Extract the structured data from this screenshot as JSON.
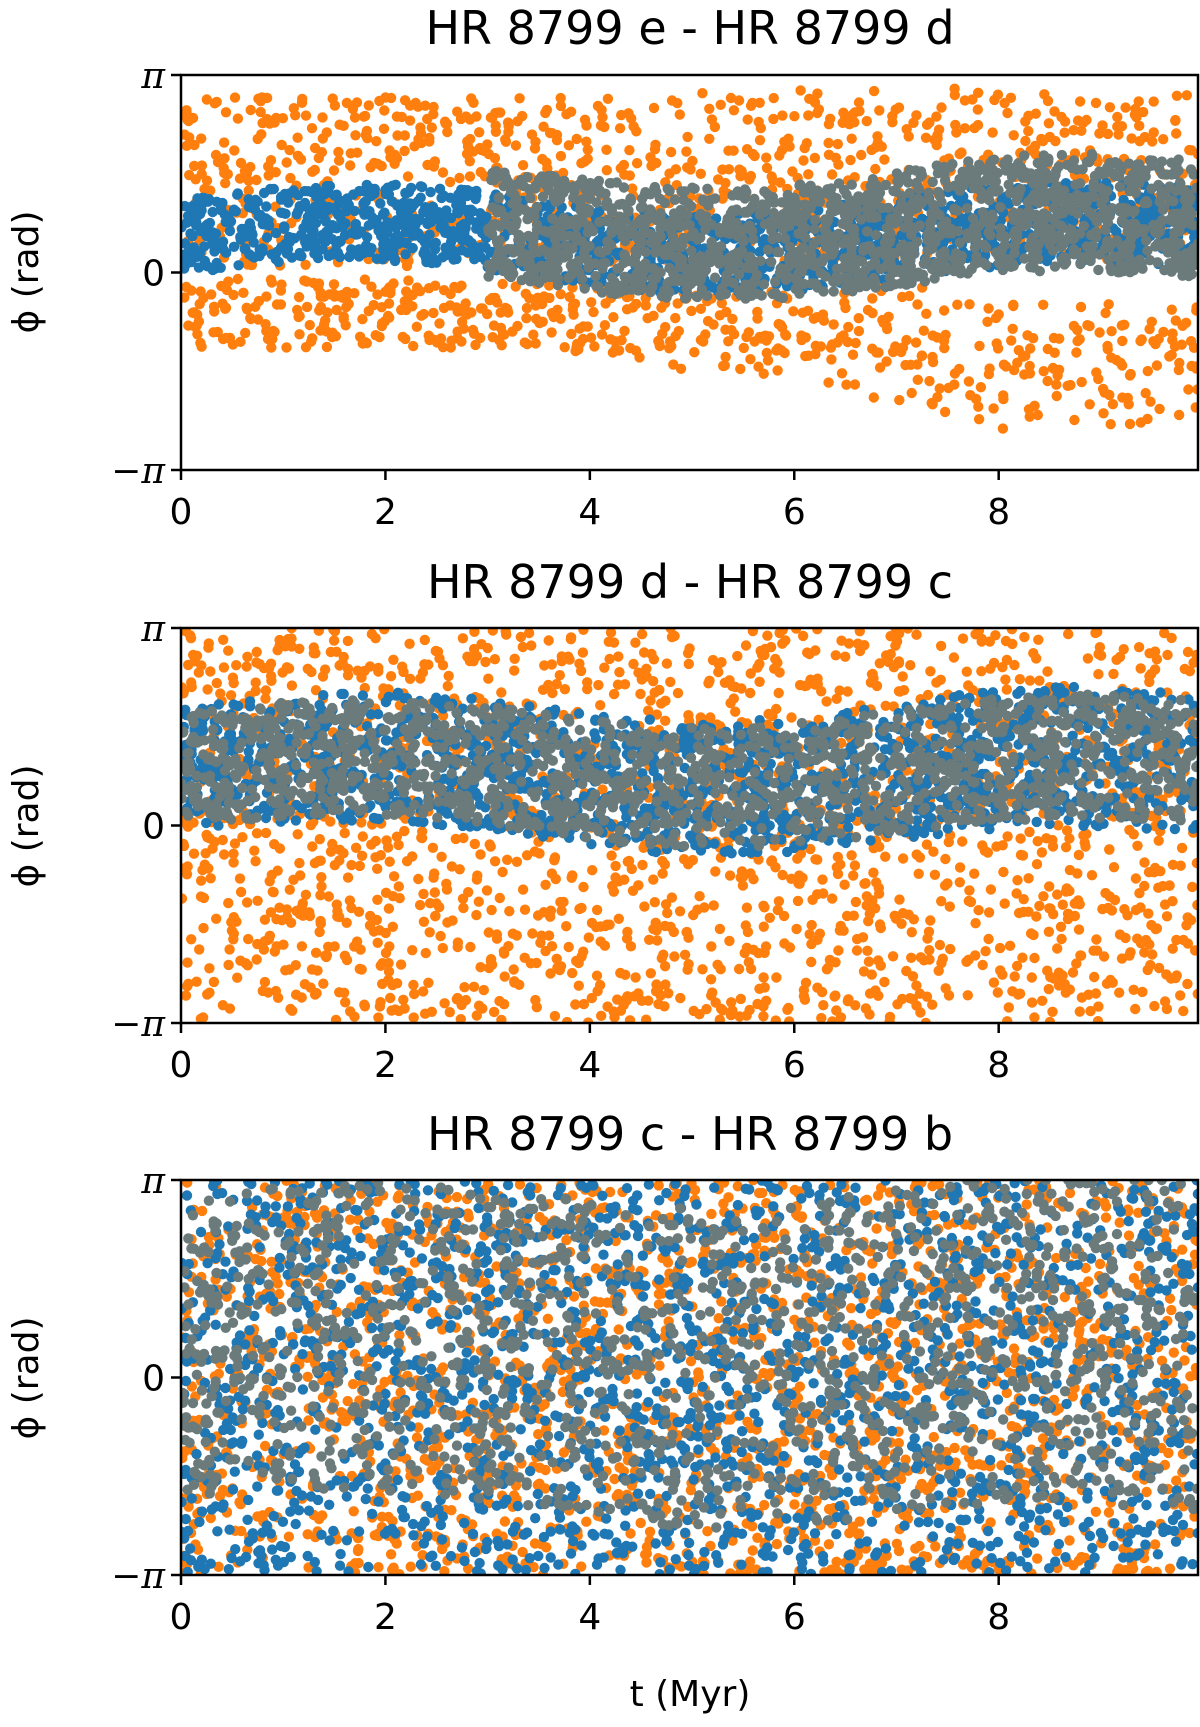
{
  "colors": {
    "orange": "#ff7f0e",
    "blue": "#1f77b4",
    "gray": "#6b7b7b"
  },
  "chart_data": [
    {
      "type": "scatter",
      "title": "HR 8799 e - HR 8799 d",
      "xlabel": "",
      "ylabel": "ϕ (rad)",
      "xlim": [
        0,
        9.95
      ],
      "ylim": [
        -3.14159,
        3.14159
      ],
      "x_ticks": [
        0,
        2,
        4,
        6,
        8
      ],
      "x_tick_labels": [
        "0",
        "2",
        "4",
        "6",
        "8"
      ],
      "y_ticks": [
        3.14159,
        0,
        -3.14159
      ],
      "y_tick_labels": [
        "π",
        "0",
        "−π"
      ],
      "grid": false,
      "series": [
        {
          "color": "#ff7f0e",
          "regime": "split",
          "bands": [
            [
              -1.2,
              -0.1
            ],
            [
              0.1,
              2.8
            ]
          ],
          "late_spread": true
        },
        {
          "color": "#1f77b4",
          "regime": "center",
          "center": 0.55,
          "half_width": 0.6
        },
        {
          "color": "#6b7b7b",
          "regime": "center",
          "center": 0.7,
          "half_width": 0.85,
          "start": 3.0
        }
      ]
    },
    {
      "type": "scatter",
      "title": "HR 8799 d - HR 8799 c",
      "xlabel": "",
      "ylabel": "ϕ (rad)",
      "xlim": [
        0,
        9.95
      ],
      "ylim": [
        -3.14159,
        3.14159
      ],
      "x_ticks": [
        0,
        2,
        4,
        6,
        8
      ],
      "x_tick_labels": [
        "0",
        "2",
        "4",
        "6",
        "8"
      ],
      "y_ticks": [
        3.14159,
        0,
        -3.14159
      ],
      "y_tick_labels": [
        "π",
        "0",
        "−π"
      ],
      "grid": false,
      "series": [
        {
          "color": "#ff7f0e",
          "regime": "uniform"
        },
        {
          "color": "#1f77b4",
          "regime": "center",
          "center": 0.85,
          "half_width": 1.0
        },
        {
          "color": "#6b7b7b",
          "regime": "center",
          "center": 0.85,
          "half_width": 0.9
        }
      ]
    },
    {
      "type": "scatter",
      "title": "HR 8799 c - HR 8799 b",
      "xlabel": "t (Myr)",
      "ylabel": "ϕ (rad)",
      "xlim": [
        0,
        9.95
      ],
      "ylim": [
        -3.14159,
        3.14159
      ],
      "x_ticks": [
        0,
        2,
        4,
        6,
        8
      ],
      "x_tick_labels": [
        "0",
        "2",
        "4",
        "6",
        "8"
      ],
      "y_ticks": [
        3.14159,
        0,
        -3.14159
      ],
      "y_tick_labels": [
        "π",
        "0",
        "−π"
      ],
      "grid": false,
      "series": [
        {
          "color": "#ff7f0e",
          "regime": "uniform"
        },
        {
          "color": "#1f77b4",
          "regime": "uniform"
        },
        {
          "color": "#6b7b7b",
          "regime": "center",
          "center": 0.4,
          "half_width": 2.4
        }
      ]
    }
  ]
}
